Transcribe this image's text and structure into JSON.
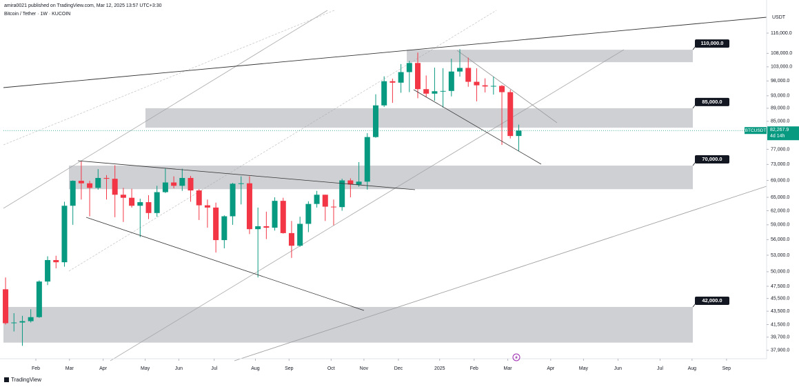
{
  "chart_data": {
    "type": "candlestick",
    "publisher": "amira0021 published on TradingView.com, Mar 12, 2025 13:57 UTC+3:30",
    "title": "Bitcoin / Tether · 1W · KUCOIN",
    "currency": "USDT",
    "symbol": "BTCUSDT",
    "countdown": "4d 14h",
    "brand": "TradingView",
    "last_label": "82,267.9",
    "up_color": "#089981",
    "down_color": "#f23645",
    "log_scale": true,
    "open": [
      47000,
      41700,
      41800,
      42000,
      42600,
      48300,
      52100,
      51700,
      63100,
      68900,
      68300,
      67200,
      69600,
      69400,
      65600,
      64900,
      63100,
      63900,
      61500,
      66200,
      68500,
      67700,
      69600,
      66600,
      63200,
      62700,
      55900,
      60800,
      68200,
      68300,
      58100,
      58700,
      58400,
      64200,
      57300,
      54800,
      59200,
      63500,
      65600,
      62900,
      62800,
      69000,
      68000,
      68700,
      80400,
      89900,
      97900,
      97400,
      101100,
      104400,
      95200,
      93700,
      94500,
      94600,
      101300,
      102600,
      97700,
      96500,
      96100,
      96300,
      94200,
      80700
    ],
    "high": [
      49000,
      43200,
      42800,
      43800,
      48500,
      52800,
      52900,
      64000,
      69000,
      73800,
      68900,
      71800,
      70300,
      72800,
      67200,
      67000,
      64700,
      65500,
      67700,
      71900,
      70000,
      71900,
      70100,
      66900,
      64500,
      63800,
      61000,
      68400,
      70000,
      70000,
      62700,
      61800,
      65000,
      64900,
      59800,
      60700,
      64100,
      66500,
      65600,
      64500,
      69400,
      69500,
      73600,
      81500,
      93500,
      99600,
      98800,
      104000,
      105200,
      108300,
      99900,
      102700,
      102500,
      106000,
      109600,
      106400,
      102500,
      98900,
      99500,
      96600,
      95000,
      84000
    ],
    "low": [
      41500,
      40500,
      38500,
      41800,
      42500,
      47700,
      50600,
      50900,
      59000,
      64500,
      60800,
      66800,
      64500,
      60600,
      59600,
      62700,
      56500,
      60200,
      60700,
      66000,
      67100,
      66500,
      64000,
      60000,
      58400,
      53500,
      54300,
      59000,
      63400,
      57100,
      49000,
      56100,
      57800,
      57200,
      52500,
      54600,
      57500,
      62700,
      59800,
      58900,
      62000,
      65000,
      67500,
      66800,
      80200,
      89400,
      90700,
      94000,
      94200,
      92200,
      92500,
      91400,
      89200,
      92800,
      99500,
      96000,
      91200,
      94100,
      93400,
      78200,
      80000,
      76600
    ],
    "close": [
      41700,
      41800,
      42000,
      42600,
      48300,
      52100,
      51700,
      63100,
      68900,
      68300,
      67200,
      69600,
      69400,
      65600,
      64900,
      63100,
      63900,
      61500,
      66200,
      68500,
      67700,
      69600,
      66600,
      63200,
      62700,
      55900,
      60800,
      68200,
      68300,
      58100,
      58700,
      58400,
      64200,
      57300,
      54800,
      59200,
      63500,
      65600,
      62900,
      62800,
      69000,
      68000,
      68700,
      80400,
      89900,
      97900,
      97400,
      101100,
      104400,
      95200,
      93700,
      94500,
      94600,
      101300,
      102600,
      97700,
      96500,
      96100,
      96300,
      94200,
      80700,
      82267.9
    ],
    "zones": [
      {
        "label": "110,000.0",
        "low": 104700,
        "high": 109400
      },
      {
        "label": "85,000.0",
        "low": 83100,
        "high": 89000
      },
      {
        "label": "70,000.0",
        "low": 66900,
        "high": 72700
      },
      {
        "label": "42,000.0",
        "low": 38940,
        "high": 44160
      }
    ],
    "xlim": [
      -0.25,
      90.3
    ],
    "xticks": [
      {
        "value": 3.6,
        "label": "Feb"
      },
      {
        "value": 7.6,
        "label": "Mar"
      },
      {
        "value": 11.6,
        "label": "Apr"
      },
      {
        "value": 16.6,
        "label": "May"
      },
      {
        "value": 20.6,
        "label": "Jun"
      },
      {
        "value": 24.8,
        "label": "Jul"
      },
      {
        "value": 29.7,
        "label": "Aug"
      },
      {
        "value": 33.7,
        "label": "Sep"
      },
      {
        "value": 38.7,
        "label": "Oct"
      },
      {
        "value": 42.6,
        "label": "Nov"
      },
      {
        "value": 46.7,
        "label": "Dec"
      },
      {
        "value": 51.6,
        "label": "2025"
      },
      {
        "value": 55.7,
        "label": "Feb"
      },
      {
        "value": 59.7,
        "label": "Mar"
      },
      {
        "value": 64.8,
        "label": "Apr"
      },
      {
        "value": 68.7,
        "label": "May"
      },
      {
        "value": 72.8,
        "label": "Jun"
      },
      {
        "value": 77.8,
        "label": "Jul"
      },
      {
        "value": 81.6,
        "label": "Aug"
      },
      {
        "value": 85.7,
        "label": "Sep"
      }
    ],
    "ylim": [
      37240,
      125700
    ],
    "yticks": [
      {
        "value": 116000,
        "label": "116,000.0"
      },
      {
        "value": 108000,
        "label": "108,000.0"
      },
      {
        "value": 103000,
        "label": "103,000.0"
      },
      {
        "value": 98000,
        "label": "98,000.0"
      },
      {
        "value": 93000,
        "label": "93,000.0"
      },
      {
        "value": 89000,
        "label": "89,000.0"
      },
      {
        "value": 85000,
        "label": "85,000.0"
      },
      {
        "value": 77000,
        "label": "77,000.0"
      },
      {
        "value": 73000,
        "label": "73,000.0"
      },
      {
        "value": 69000,
        "label": "69,000.0"
      },
      {
        "value": 65000,
        "label": "65,000.0"
      },
      {
        "value": 62000,
        "label": "62,000.0"
      },
      {
        "value": 59000,
        "label": "59,000.0"
      },
      {
        "value": 56000,
        "label": "56,000.0"
      },
      {
        "value": 53000,
        "label": "53,000.0"
      },
      {
        "value": 50000,
        "label": "50,000.0"
      },
      {
        "value": 47500,
        "label": "47,500.0"
      },
      {
        "value": 45500,
        "label": "45,500.0"
      },
      {
        "value": 43500,
        "label": "43,500.0"
      },
      {
        "value": 41500,
        "label": "41,500.0"
      },
      {
        "value": 39700,
        "label": "39,700.0"
      },
      {
        "value": 37900,
        "label": "37,900.0"
      }
    ]
  }
}
